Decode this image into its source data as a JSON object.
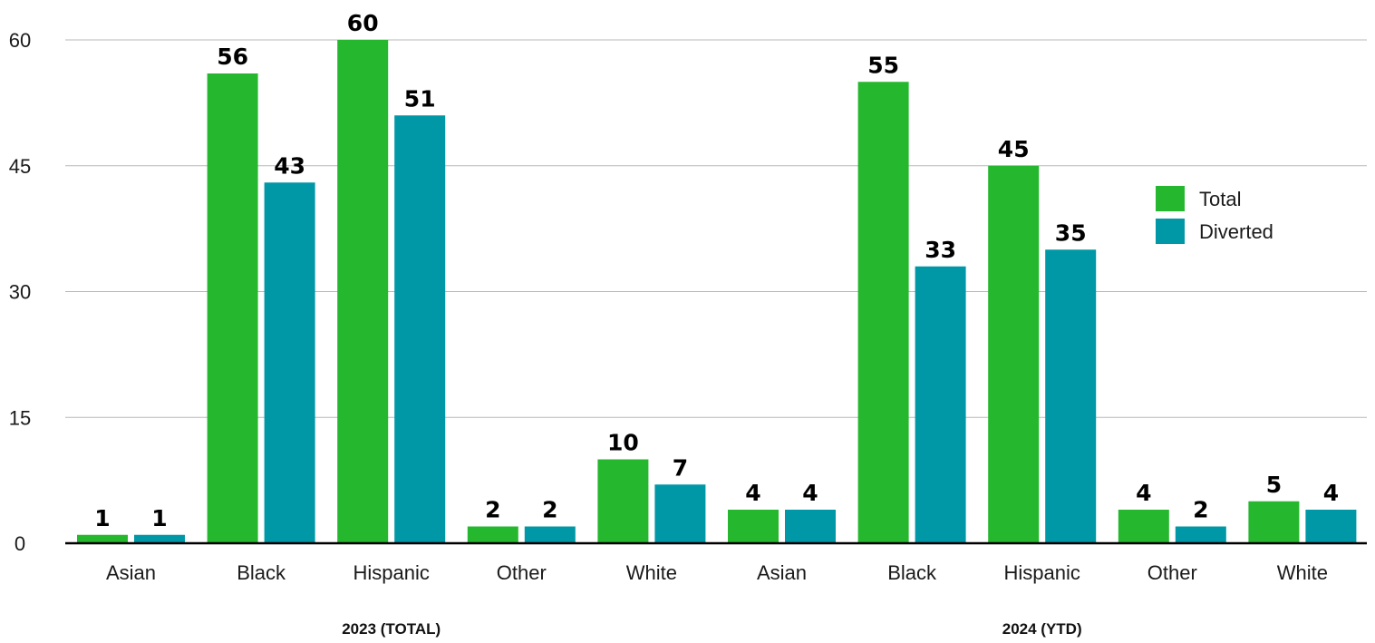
{
  "chart_data": {
    "type": "bar",
    "groups": [
      {
        "label": "2023 (TOTAL)",
        "categories": [
          "Asian",
          "Black",
          "Hispanic",
          "Other",
          "White"
        ]
      },
      {
        "label": "2024 (YTD)",
        "categories": [
          "Asian",
          "Black",
          "Hispanic",
          "Other",
          "White"
        ]
      }
    ],
    "categories": [
      "Asian",
      "Black",
      "Hispanic",
      "Other",
      "White",
      "Asian",
      "Black",
      "Hispanic",
      "Other",
      "White"
    ],
    "series": [
      {
        "name": "Total",
        "color": "#25b82e",
        "values": [
          1,
          56,
          60,
          2,
          10,
          4,
          55,
          45,
          4,
          5
        ]
      },
      {
        "name": "Diverted",
        "color": "#0098a6",
        "values": [
          1,
          43,
          51,
          2,
          7,
          4,
          33,
          35,
          2,
          4
        ]
      }
    ],
    "ylim": [
      0,
      60
    ],
    "yticks": [
      0,
      15,
      30,
      45,
      60
    ],
    "grid": true,
    "legend_position": "right",
    "data_labels": true
  }
}
